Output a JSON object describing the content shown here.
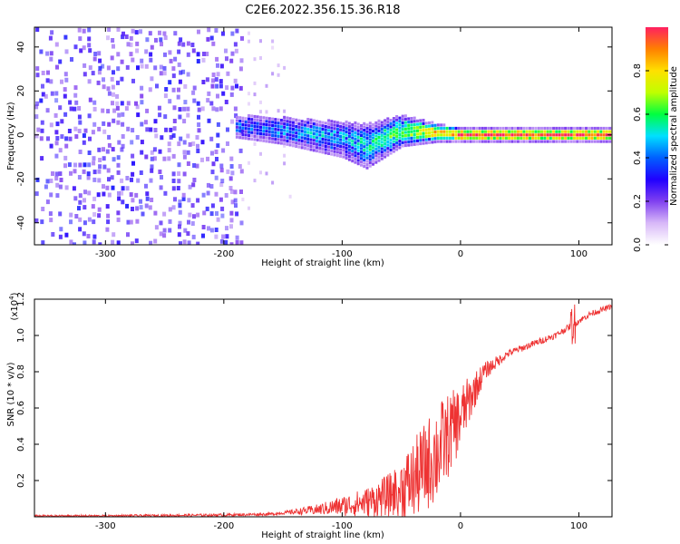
{
  "title": "C2E6.2022.356.15.36.R18",
  "chart_data": [
    {
      "type": "heatmap",
      "xlabel": "Height of straight line (km)",
      "ylabel": "Frequency (Hz)",
      "xlim": [
        -360,
        128
      ],
      "ylim": [
        -50,
        49
      ],
      "x_ticks": [
        -300,
        -200,
        -100,
        0,
        100
      ],
      "y_ticks": [
        -40,
        -20,
        0,
        20,
        40
      ],
      "colorbar": {
        "label": "Normalized spectral amplitude",
        "range": [
          0.0,
          1.0
        ],
        "ticks": [
          0.0,
          0.2,
          0.4,
          0.6,
          0.8
        ],
        "colormap": [
          "#ffffff",
          "#d8b8f8",
          "#8040f0",
          "#2000ff",
          "#0060ff",
          "#00e0ff",
          "#00ff40",
          "#c0ff00",
          "#ffe000",
          "#ff8000",
          "#ff2060"
        ]
      },
      "structure": {
        "broadband_noise_x": [
          -360,
          -185
        ],
        "sparse_noise_x": [
          -185,
          -140
        ],
        "signal_band": [
          {
            "x": -190,
            "center": 4,
            "halfwidth": 4,
            "amp": 0.35
          },
          {
            "x": -150,
            "center": 2,
            "halfwidth": 5,
            "amp": 0.4
          },
          {
            "x": -100,
            "center": -2,
            "halfwidth": 7,
            "amp": 0.45
          },
          {
            "x": -80,
            "center": -5,
            "halfwidth": 9,
            "amp": 0.5
          },
          {
            "x": -50,
            "center": 2,
            "halfwidth": 6,
            "amp": 0.6
          },
          {
            "x": -20,
            "center": 1,
            "halfwidth": 3,
            "amp": 0.8
          },
          {
            "x": 0,
            "center": 0,
            "halfwidth": 2,
            "amp": 0.95
          },
          {
            "x": 128,
            "center": 0,
            "halfwidth": 2,
            "amp": 0.95
          }
        ]
      }
    },
    {
      "type": "line",
      "xlabel": "Height of straight line (km)",
      "ylabel": "SNR (10 * v/v)",
      "yscale_label": "(x10",
      "yscale_exp": "4",
      "yscale_suffix": ")",
      "xlim": [
        -360,
        128
      ],
      "ylim": [
        0,
        1.2
      ],
      "x_ticks": [
        -300,
        -200,
        -100,
        0,
        100
      ],
      "y_ticks": [
        "0.2",
        "0.4",
        "0.6",
        "0.8",
        "1.0",
        "1.2"
      ],
      "series": [
        {
          "color": "#ee3333",
          "trend": {
            "x": [
              -360,
              -300,
              -200,
              -160,
              -120,
              -100,
              -80,
              -60,
              -40,
              -20,
              0,
              20,
              40,
              60,
              80,
              95,
              110,
              128
            ],
            "y": [
              0.005,
              0.005,
              0.01,
              0.015,
              0.04,
              0.06,
              0.08,
              0.12,
              0.2,
              0.35,
              0.55,
              0.8,
              0.9,
              0.95,
              1.0,
              1.06,
              1.12,
              1.16
            ]
          },
          "noise_amplitude": {
            "x": [
              -360,
              -150,
              -120,
              -80,
              -60,
              -40,
              -20,
              0,
              20,
              40,
              128
            ],
            "y": [
              0.005,
              0.008,
              0.03,
              0.08,
              0.12,
              0.22,
              0.28,
              0.18,
              0.05,
              0.02,
              0.015
            ]
          },
          "spike": {
            "x": 95,
            "amplitude": 0.1
          }
        }
      ]
    }
  ]
}
